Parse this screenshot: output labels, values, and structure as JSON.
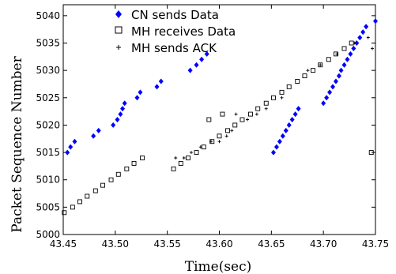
{
  "chart_data": {
    "type": "scatter",
    "xlabel": "Time(sec)",
    "ylabel": "Packet Sequence Number",
    "xlim": [
      43.45,
      43.75
    ],
    "ylim": [
      5000,
      5042
    ],
    "xticks": [
      43.45,
      43.5,
      43.55,
      43.6,
      43.65,
      43.7,
      43.75
    ],
    "xtick_labels": [
      "43.45",
      "43.50",
      "43.55",
      "43.60",
      "43.65",
      "43.70",
      "43.75"
    ],
    "yticks": [
      5000,
      5005,
      5010,
      5015,
      5020,
      5025,
      5030,
      5035,
      5040
    ],
    "ytick_labels": [
      "5000",
      "5005",
      "5010",
      "5015",
      "5020",
      "5025",
      "5030",
      "5035",
      "5040"
    ],
    "legend_position": "top-left",
    "series": [
      {
        "name": "CN sends Data",
        "marker": "diamond",
        "color": "#0000ff",
        "points": [
          [
            43.454,
            5015
          ],
          [
            43.457,
            5016
          ],
          [
            43.461,
            5017
          ],
          [
            43.479,
            5018
          ],
          [
            43.484,
            5019
          ],
          [
            43.498,
            5020
          ],
          [
            43.502,
            5021
          ],
          [
            43.505,
            5022
          ],
          [
            43.507,
            5023
          ],
          [
            43.509,
            5024
          ],
          [
            43.521,
            5025
          ],
          [
            43.524,
            5026
          ],
          [
            43.54,
            5027
          ],
          [
            43.544,
            5028
          ],
          [
            43.572,
            5030
          ],
          [
            43.578,
            5031
          ],
          [
            43.583,
            5032
          ],
          [
            43.588,
            5033
          ],
          [
            43.652,
            5015
          ],
          [
            43.655,
            5016
          ],
          [
            43.658,
            5017
          ],
          [
            43.661,
            5018
          ],
          [
            43.664,
            5019
          ],
          [
            43.667,
            5020
          ],
          [
            43.67,
            5021
          ],
          [
            43.673,
            5022
          ],
          [
            43.676,
            5023
          ],
          [
            43.7,
            5024
          ],
          [
            43.703,
            5025
          ],
          [
            43.706,
            5026
          ],
          [
            43.709,
            5027
          ],
          [
            43.712,
            5028
          ],
          [
            43.715,
            5029
          ],
          [
            43.717,
            5030
          ],
          [
            43.72,
            5031
          ],
          [
            43.723,
            5032
          ],
          [
            43.726,
            5033
          ],
          [
            43.729,
            5034
          ],
          [
            43.732,
            5035
          ],
          [
            43.735,
            5036
          ],
          [
            43.738,
            5037
          ],
          [
            43.741,
            5038
          ],
          [
            43.75,
            5039
          ]
        ]
      },
      {
        "name": "MH receives Data",
        "marker": "square",
        "color": "#000000",
        "points": [
          [
            43.451,
            5004
          ],
          [
            43.459,
            5005
          ],
          [
            43.466,
            5006
          ],
          [
            43.473,
            5007
          ],
          [
            43.481,
            5008
          ],
          [
            43.488,
            5009
          ],
          [
            43.496,
            5010
          ],
          [
            43.503,
            5011
          ],
          [
            43.511,
            5012
          ],
          [
            43.518,
            5013
          ],
          [
            43.526,
            5014
          ],
          [
            43.556,
            5012
          ],
          [
            43.563,
            5013
          ],
          [
            43.57,
            5014
          ],
          [
            43.578,
            5015
          ],
          [
            43.585,
            5016
          ],
          [
            43.593,
            5017
          ],
          [
            43.6,
            5018
          ],
          [
            43.608,
            5019
          ],
          [
            43.615,
            5020
          ],
          [
            43.59,
            5021
          ],
          [
            43.603,
            5022
          ],
          [
            43.622,
            5021
          ],
          [
            43.63,
            5022
          ],
          [
            43.637,
            5023
          ],
          [
            43.645,
            5024
          ],
          [
            43.652,
            5025
          ],
          [
            43.66,
            5026
          ],
          [
            43.667,
            5027
          ],
          [
            43.675,
            5028
          ],
          [
            43.682,
            5029
          ],
          [
            43.69,
            5030
          ],
          [
            43.697,
            5031
          ],
          [
            43.705,
            5032
          ],
          [
            43.712,
            5033
          ],
          [
            43.72,
            5034
          ],
          [
            43.727,
            5035
          ],
          [
            43.746,
            5015
          ]
        ]
      },
      {
        "name": "MH sends ACK",
        "marker": "plus",
        "color": "#000000",
        "points": [
          [
            43.558,
            5014
          ],
          [
            43.566,
            5014
          ],
          [
            43.573,
            5015
          ],
          [
            43.582,
            5016
          ],
          [
            43.592,
            5017
          ],
          [
            43.6,
            5017
          ],
          [
            43.607,
            5018
          ],
          [
            43.612,
            5019
          ],
          [
            43.616,
            5022
          ],
          [
            43.627,
            5021
          ],
          [
            43.636,
            5022
          ],
          [
            43.645,
            5023
          ],
          [
            43.66,
            5025
          ],
          [
            43.685,
            5030
          ],
          [
            43.697,
            5031
          ],
          [
            43.713,
            5033
          ],
          [
            43.73,
            5035
          ],
          [
            43.743,
            5036
          ],
          [
            43.747,
            5034
          ]
        ]
      }
    ]
  }
}
